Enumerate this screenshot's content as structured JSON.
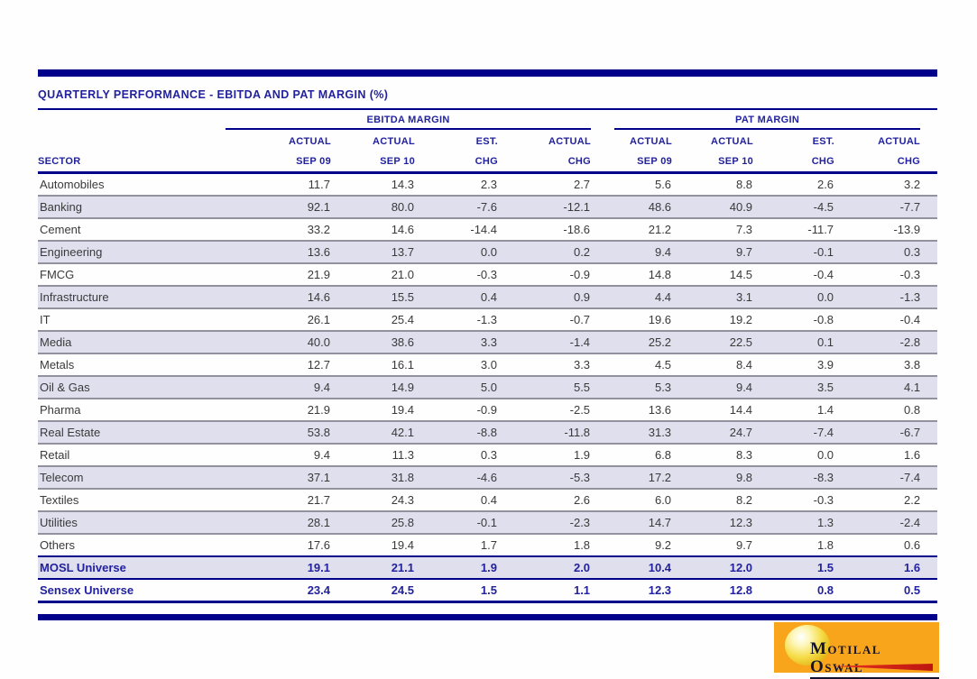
{
  "slide": {
    "title": "QUARTERLY PERFORMANCE - EBITDA AND PAT MARGIN (%)"
  },
  "table": {
    "sector_header": "SECTOR",
    "groups": [
      {
        "label": "EBITDA MARGIN"
      },
      {
        "label": "PAT MARGIN"
      }
    ],
    "column_headers": [
      {
        "line1": "ACTUAL",
        "line2": "SEP 09"
      },
      {
        "line1": "ACTUAL",
        "line2": "SEP 10"
      },
      {
        "line1": "EST.",
        "line2": "CHG"
      },
      {
        "line1": "ACTUAL",
        "line2": "CHG"
      },
      {
        "line1": "ACTUAL",
        "line2": "SEP 09"
      },
      {
        "line1": "ACTUAL",
        "line2": "SEP 10"
      },
      {
        "line1": "EST.",
        "line2": "CHG"
      },
      {
        "line1": "ACTUAL",
        "line2": "CHG"
      }
    ],
    "rows": [
      {
        "sector": "Automobiles",
        "values": [
          "11.7",
          "14.3",
          "2.3",
          "2.7",
          "5.6",
          "8.8",
          "2.6",
          "3.2"
        ]
      },
      {
        "sector": "Banking",
        "values": [
          "92.1",
          "80.0",
          "-7.6",
          "-12.1",
          "48.6",
          "40.9",
          "-4.5",
          "-7.7"
        ]
      },
      {
        "sector": "Cement",
        "values": [
          "33.2",
          "14.6",
          "-14.4",
          "-18.6",
          "21.2",
          "7.3",
          "-11.7",
          "-13.9"
        ]
      },
      {
        "sector": "Engineering",
        "values": [
          "13.6",
          "13.7",
          "0.0",
          "0.2",
          "9.4",
          "9.7",
          "-0.1",
          "0.3"
        ]
      },
      {
        "sector": "FMCG",
        "values": [
          "21.9",
          "21.0",
          "-0.3",
          "-0.9",
          "14.8",
          "14.5",
          "-0.4",
          "-0.3"
        ]
      },
      {
        "sector": "Infrastructure",
        "values": [
          "14.6",
          "15.5",
          "0.4",
          "0.9",
          "4.4",
          "3.1",
          "0.0",
          "-1.3"
        ]
      },
      {
        "sector": "IT",
        "values": [
          "26.1",
          "25.4",
          "-1.3",
          "-0.7",
          "19.6",
          "19.2",
          "-0.8",
          "-0.4"
        ]
      },
      {
        "sector": "Media",
        "values": [
          "40.0",
          "38.6",
          "3.3",
          "-1.4",
          "25.2",
          "22.5",
          "0.1",
          "-2.8"
        ]
      },
      {
        "sector": "Metals",
        "values": [
          "12.7",
          "16.1",
          "3.0",
          "3.3",
          "4.5",
          "8.4",
          "3.9",
          "3.8"
        ]
      },
      {
        "sector": "Oil & Gas",
        "values": [
          "9.4",
          "14.9",
          "5.0",
          "5.5",
          "5.3",
          "9.4",
          "3.5",
          "4.1"
        ]
      },
      {
        "sector": "Pharma",
        "values": [
          "21.9",
          "19.4",
          "-0.9",
          "-2.5",
          "13.6",
          "14.4",
          "1.4",
          "0.8"
        ]
      },
      {
        "sector": "Real Estate",
        "values": [
          "53.8",
          "42.1",
          "-8.8",
          "-11.8",
          "31.3",
          "24.7",
          "-7.4",
          "-6.7"
        ]
      },
      {
        "sector": "Retail",
        "values": [
          "9.4",
          "11.3",
          "0.3",
          "1.9",
          "6.8",
          "8.3",
          "0.0",
          "1.6"
        ]
      },
      {
        "sector": "Telecom",
        "values": [
          "37.1",
          "31.8",
          "-4.6",
          "-5.3",
          "17.2",
          "9.8",
          "-8.3",
          "-7.4"
        ]
      },
      {
        "sector": "Textiles",
        "values": [
          "21.7",
          "24.3",
          "0.4",
          "2.6",
          "6.0",
          "8.2",
          "-0.3",
          "2.2"
        ]
      },
      {
        "sector": "Utilities",
        "values": [
          "28.1",
          "25.8",
          "-0.1",
          "-2.3",
          "14.7",
          "12.3",
          "1.3",
          "-2.4"
        ]
      },
      {
        "sector": "Others",
        "values": [
          "17.6",
          "19.4",
          "1.7",
          "1.8",
          "9.2",
          "9.7",
          "1.8",
          "0.6"
        ]
      }
    ],
    "summary_rows": [
      {
        "sector": "MOSL Universe",
        "values": [
          "19.1",
          "21.1",
          "1.9",
          "2.0",
          "10.4",
          "12.0",
          "1.5",
          "1.6"
        ]
      },
      {
        "sector": "Sensex Universe",
        "values": [
          "23.4",
          "24.5",
          "1.5",
          "1.1",
          "12.3",
          "12.8",
          "0.8",
          "0.5"
        ]
      }
    ]
  },
  "logo": {
    "brand": "Motilal Oswal"
  },
  "colors": {
    "navy": "#00008B",
    "header_text": "#22229E",
    "row_alt": "#DFDFEE",
    "logo_orange": "#F9A51C",
    "logo_red": "#D92613"
  }
}
